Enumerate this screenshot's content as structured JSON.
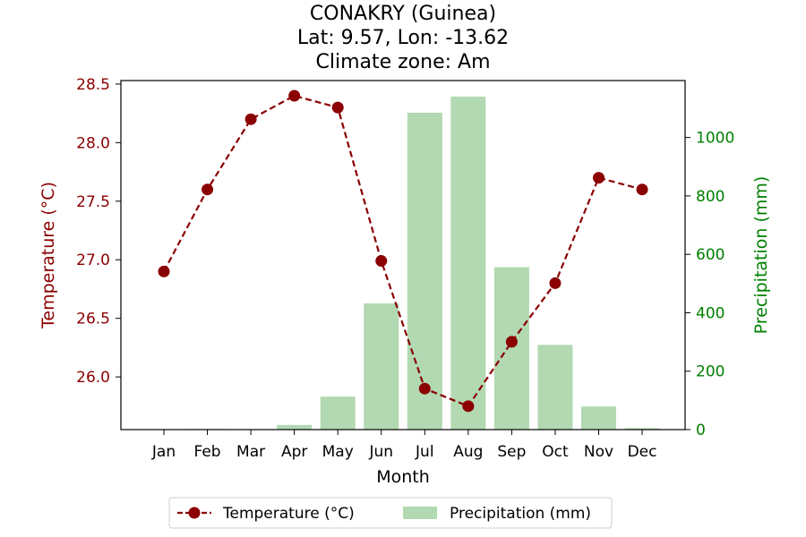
{
  "chart_data": {
    "type": "bar+line",
    "title_lines": [
      "CONAKRY (Guinea)",
      "Lat: 9.57, Lon: -13.62",
      "Climate zone: Am"
    ],
    "xlabel": "Month",
    "categories": [
      "Jan",
      "Feb",
      "Mar",
      "Apr",
      "May",
      "Jun",
      "Jul",
      "Aug",
      "Sep",
      "Oct",
      "Nov",
      "Dec"
    ],
    "left_axis": {
      "label": "Temperature (°C)",
      "ylim": [
        25.55,
        28.53
      ],
      "ticks": [
        "26.0",
        "26.5",
        "27.0",
        "27.5",
        "28.0",
        "28.5"
      ],
      "color": "#8b0000"
    },
    "right_axis": {
      "label": "Precipitation (mm)",
      "ylim": [
        0,
        1195
      ],
      "ticks": [
        "0",
        "200",
        "400",
        "600",
        "800",
        "1000"
      ],
      "color": "#008000"
    },
    "series": [
      {
        "name": "Temperature (°C)",
        "kind": "line",
        "axis": "left",
        "color": "#8b0000",
        "style": "dashed",
        "marker": "circle",
        "values": [
          26.9,
          27.6,
          28.2,
          28.4,
          28.3,
          26.99,
          25.9,
          25.75,
          26.3,
          26.8,
          27.7,
          27.6
        ]
      },
      {
        "name": "Precipitation (mm)",
        "kind": "bar",
        "axis": "right",
        "color": "#b2d9b2",
        "values": [
          1,
          2,
          1,
          16,
          113,
          432,
          1085,
          1140,
          556,
          290,
          79,
          5
        ]
      }
    ],
    "legend": "bottom-center"
  }
}
